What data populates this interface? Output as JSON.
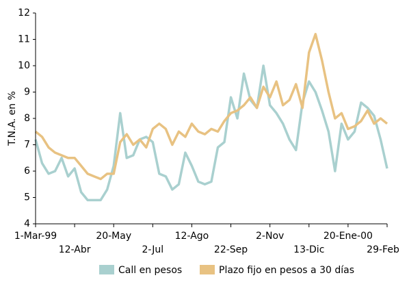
{
  "chart_data": {
    "type": "line",
    "y_label": "T.N.A. en %",
    "categories": [
      "1-Mar-99",
      null,
      null,
      null,
      null,
      null,
      "12-Abr",
      null,
      null,
      null,
      null,
      null,
      "20-May",
      null,
      null,
      null,
      null,
      null,
      "2-Jul",
      null,
      null,
      null,
      null,
      null,
      "12-Ago",
      null,
      null,
      null,
      null,
      null,
      "22-Sep",
      null,
      null,
      null,
      null,
      null,
      "2-Nov",
      null,
      null,
      null,
      null,
      null,
      "13-Dic",
      null,
      null,
      null,
      null,
      null,
      "20-Ene-00",
      null,
      null,
      null,
      null,
      null,
      "29-Feb"
    ],
    "series": [
      {
        "name": "Call en pesos",
        "color": "#a9d0cf",
        "values": [
          7.2,
          6.3,
          5.9,
          6.0,
          6.5,
          5.8,
          6.1,
          5.2,
          4.9,
          4.9,
          4.9,
          5.3,
          6.2,
          8.2,
          6.5,
          6.6,
          7.2,
          7.3,
          7.1,
          5.9,
          5.8,
          5.3,
          5.5,
          6.7,
          6.2,
          5.6,
          5.5,
          5.6,
          6.9,
          7.1,
          8.8,
          8.0,
          9.7,
          8.7,
          8.4,
          10.0,
          8.5,
          8.2,
          7.8,
          7.2,
          6.8,
          8.6,
          9.4,
          9.0,
          8.3,
          7.5,
          6.0,
          7.8,
          7.2,
          7.5,
          8.6,
          8.4,
          8.1,
          7.2,
          6.1
        ]
      },
      {
        "name": "Plazo fijo en pesos a 30 días",
        "color": "#e8c282",
        "values": [
          7.5,
          7.3,
          6.9,
          6.7,
          6.6,
          6.5,
          6.5,
          6.2,
          5.9,
          5.8,
          5.7,
          5.9,
          5.9,
          7.1,
          7.4,
          7.0,
          7.2,
          6.9,
          7.6,
          7.8,
          7.6,
          7.0,
          7.5,
          7.3,
          7.8,
          7.5,
          7.4,
          7.6,
          7.5,
          7.9,
          8.2,
          8.3,
          8.5,
          8.8,
          8.4,
          9.2,
          8.8,
          9.4,
          8.5,
          8.7,
          9.3,
          8.4,
          10.5,
          11.2,
          10.2,
          9.0,
          8.0,
          8.2,
          7.6,
          7.7,
          7.9,
          8.3,
          7.8,
          8.0,
          7.8
        ]
      }
    ],
    "ylim": [
      4,
      12
    ],
    "yticks": [
      4,
      5,
      6,
      7,
      8,
      9,
      10,
      11,
      12
    ]
  }
}
